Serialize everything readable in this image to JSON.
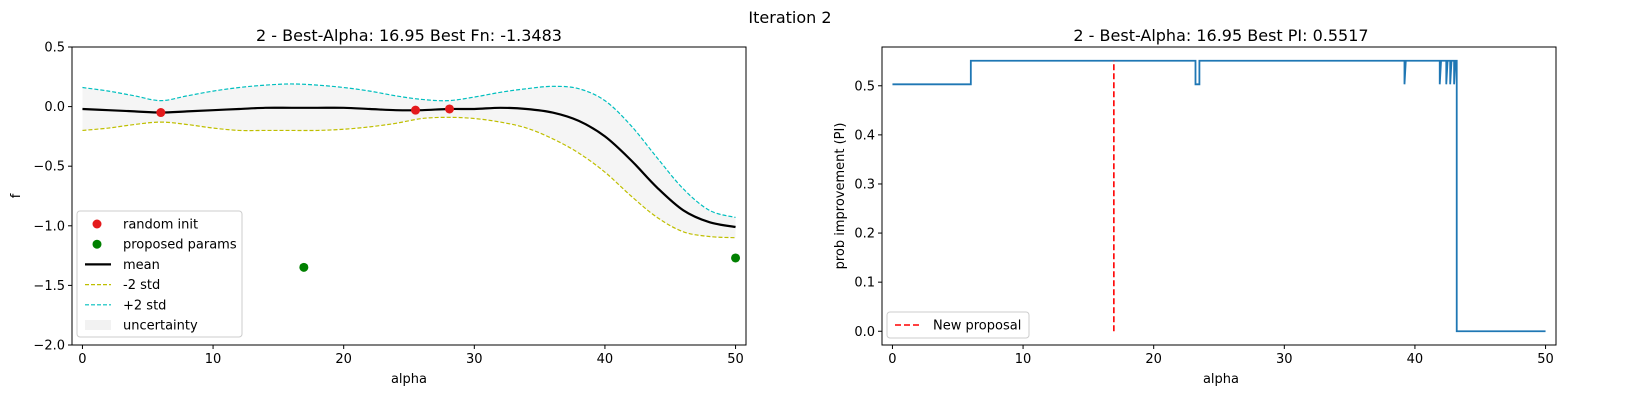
{
  "figure": {
    "suptitle": "Iteration 2"
  },
  "chart_data": [
    {
      "type": "line",
      "title": "2 - Best-Alpha: 16.95 Best Fn: -1.3483",
      "xlabel": "alpha",
      "ylabel": "f",
      "xlim": [
        -0.8,
        50.8
      ],
      "ylim": [
        -2.0,
        0.5
      ],
      "xticks": [
        0,
        10,
        20,
        30,
        40,
        50
      ],
      "yticks": [
        -2.0,
        -1.5,
        -1.0,
        -0.5,
        0.0,
        0.5
      ],
      "ytick_labels": [
        "−2.0",
        "−1.5",
        "−1.0",
        "−0.5",
        "0.0",
        "0.5"
      ],
      "legend_position": "lower-left",
      "legend": [
        {
          "label": "random init",
          "kind": "scatter",
          "color": "#e41a1c"
        },
        {
          "label": "proposed params",
          "kind": "scatter",
          "color": "#008000"
        },
        {
          "label": "mean",
          "kind": "line",
          "color": "#000000"
        },
        {
          "label": "-2 std",
          "kind": "dashed",
          "color": "#bfbf00"
        },
        {
          "label": "+2 std",
          "kind": "dashed",
          "color": "#00bfbf"
        },
        {
          "label": "uncertainty",
          "kind": "patch",
          "color": "#f2f2f2"
        }
      ],
      "x": [
        0,
        2,
        4,
        6,
        8,
        10,
        12,
        14,
        16,
        18,
        20,
        22,
        24,
        26,
        28,
        30,
        32,
        34,
        36,
        38,
        40,
        42,
        44,
        46,
        48,
        50
      ],
      "series": [
        {
          "name": "mean",
          "color": "#000000",
          "values": [
            -0.02,
            -0.03,
            -0.04,
            -0.05,
            -0.04,
            -0.03,
            -0.02,
            -0.01,
            -0.01,
            -0.01,
            -0.01,
            -0.02,
            -0.03,
            -0.03,
            -0.02,
            -0.02,
            -0.01,
            -0.02,
            -0.05,
            -0.12,
            -0.25,
            -0.45,
            -0.68,
            -0.87,
            -0.97,
            -1.01
          ]
        },
        {
          "name": "-2 std",
          "color": "#bfbf00",
          "values": [
            -0.2,
            -0.18,
            -0.15,
            -0.13,
            -0.15,
            -0.18,
            -0.2,
            -0.2,
            -0.2,
            -0.2,
            -0.19,
            -0.17,
            -0.14,
            -0.1,
            -0.09,
            -0.1,
            -0.13,
            -0.18,
            -0.27,
            -0.39,
            -0.55,
            -0.75,
            -0.93,
            -1.05,
            -1.09,
            -1.1
          ]
        },
        {
          "name": "+2 std",
          "color": "#00bfbf",
          "values": [
            0.16,
            0.13,
            0.09,
            0.05,
            0.09,
            0.13,
            0.16,
            0.18,
            0.19,
            0.18,
            0.16,
            0.13,
            0.09,
            0.06,
            0.05,
            0.08,
            0.12,
            0.15,
            0.17,
            0.15,
            0.05,
            -0.16,
            -0.43,
            -0.69,
            -0.87,
            -0.93
          ]
        }
      ],
      "random_init": [
        {
          "x": 6.0,
          "y": -0.05
        },
        {
          "x": 25.5,
          "y": -0.03
        },
        {
          "x": 28.1,
          "y": -0.02
        }
      ],
      "proposed_params": [
        {
          "x": 16.95,
          "y": -1.3483
        },
        {
          "x": 50.0,
          "y": -1.27
        }
      ]
    },
    {
      "type": "line",
      "title": "2 - Best-Alpha: 16.95 Best PI: 0.5517",
      "xlabel": "alpha",
      "ylabel": "prob improvement (PI)",
      "xlim": [
        -0.8,
        50.8
      ],
      "ylim": [
        -0.028,
        0.579
      ],
      "xticks": [
        0,
        10,
        20,
        30,
        40,
        50
      ],
      "yticks": [
        0.0,
        0.1,
        0.2,
        0.3,
        0.4,
        0.5
      ],
      "ytick_labels": [
        "0.0",
        "0.1",
        "0.2",
        "0.3",
        "0.4",
        "0.5"
      ],
      "legend_position": "lower-left",
      "legend": [
        {
          "label": "New proposal",
          "kind": "dashed",
          "color": "#ff0000"
        }
      ],
      "series": [
        {
          "name": "PI",
          "color": "#1f77b4",
          "points": [
            [
              0,
              0.503
            ],
            [
              6.0,
              0.503
            ],
            [
              6.0,
              0.551
            ],
            [
              23.2,
              0.551
            ],
            [
              23.2,
              0.503
            ],
            [
              23.5,
              0.503
            ],
            [
              23.5,
              0.551
            ],
            [
              39.2,
              0.551
            ],
            [
              39.2,
              0.503
            ],
            [
              39.3,
              0.551
            ],
            [
              41.9,
              0.551
            ],
            [
              41.9,
              0.503
            ],
            [
              42.0,
              0.551
            ],
            [
              42.4,
              0.551
            ],
            [
              42.4,
              0.503
            ],
            [
              42.5,
              0.551
            ],
            [
              42.7,
              0.551
            ],
            [
              42.7,
              0.503
            ],
            [
              42.8,
              0.551
            ],
            [
              43.0,
              0.551
            ],
            [
              43.0,
              0.503
            ],
            [
              43.1,
              0.551
            ],
            [
              43.2,
              0.551
            ],
            [
              43.2,
              0.0
            ],
            [
              50,
              0.0
            ]
          ]
        }
      ],
      "new_proposal_x": 16.95
    }
  ]
}
